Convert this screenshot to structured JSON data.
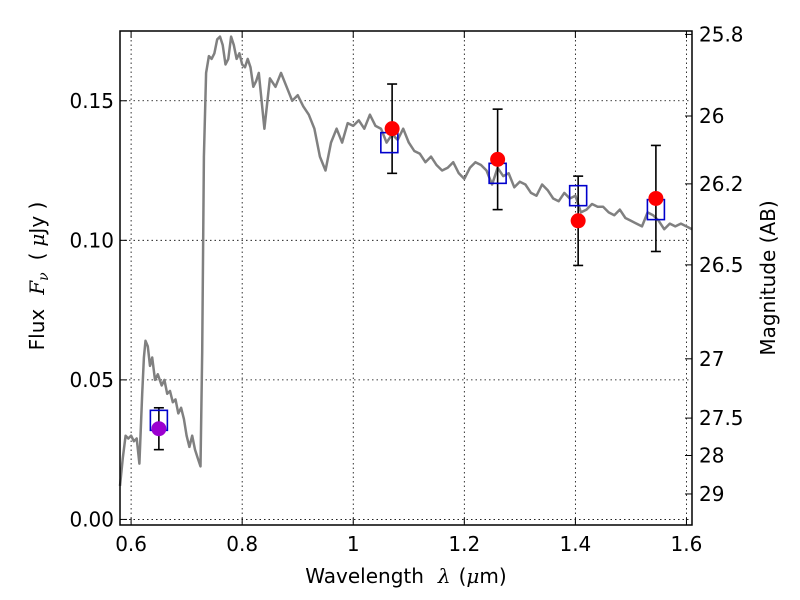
{
  "chart_data": {
    "type": "scatter",
    "xlabel": {
      "text": "Wavelength",
      "symbol": "λ",
      "unit_open": "(",
      "unit_mu": "μ",
      "unit_rest": "m)"
    },
    "ylabel": {
      "text": "Flux",
      "symbol": "F",
      "sub": "ν",
      "unit_open": "(",
      "unit_mu": "μ",
      "unit_rest": "Jy )"
    },
    "y2label": "Magnitude (AB)",
    "xlim": [
      0.58,
      1.61
    ],
    "ylim": [
      -0.002,
      0.175
    ],
    "grid": true,
    "x_ticks": [
      {
        "value": 0.6,
        "label": "0.6"
      },
      {
        "value": 0.8,
        "label": "0.8"
      },
      {
        "value": 1.0,
        "label": "1"
      },
      {
        "value": 1.2,
        "label": "1.2"
      },
      {
        "value": 1.4,
        "label": "1.4"
      },
      {
        "value": 1.6,
        "label": "1.6"
      }
    ],
    "y_ticks": [
      {
        "value": 0.0,
        "label": "0.00"
      },
      {
        "value": 0.05,
        "label": "0.05"
      },
      {
        "value": 0.1,
        "label": "0.10"
      },
      {
        "value": 0.15,
        "label": "0.15"
      }
    ],
    "y2_ticks": [
      {
        "value": 25.8,
        "label": "25.8"
      },
      {
        "value": 26.0,
        "label": "26"
      },
      {
        "value": 26.2,
        "label": "26.2"
      },
      {
        "value": 26.5,
        "label": "26.5"
      },
      {
        "value": 27.0,
        "label": "27"
      },
      {
        "value": 27.5,
        "label": "27.5"
      },
      {
        "value": 28.0,
        "label": "28"
      },
      {
        "value": 29.0,
        "label": "29"
      }
    ],
    "sed_model": {
      "color": "#808080",
      "x": [
        0.58,
        0.585,
        0.59,
        0.595,
        0.6,
        0.605,
        0.61,
        0.615,
        0.62,
        0.623,
        0.626,
        0.63,
        0.634,
        0.638,
        0.643,
        0.648,
        0.655,
        0.66,
        0.665,
        0.67,
        0.675,
        0.68,
        0.685,
        0.69,
        0.695,
        0.7,
        0.705,
        0.71,
        0.715,
        0.72,
        0.725,
        0.728,
        0.731,
        0.735,
        0.74,
        0.745,
        0.75,
        0.755,
        0.76,
        0.765,
        0.77,
        0.775,
        0.78,
        0.785,
        0.79,
        0.795,
        0.8,
        0.805,
        0.81,
        0.815,
        0.82,
        0.825,
        0.83,
        0.835,
        0.84,
        0.85,
        0.86,
        0.87,
        0.88,
        0.89,
        0.9,
        0.91,
        0.92,
        0.93,
        0.94,
        0.95,
        0.96,
        0.97,
        0.98,
        0.99,
        1.0,
        1.01,
        1.02,
        1.03,
        1.04,
        1.05,
        1.06,
        1.07,
        1.08,
        1.09,
        1.1,
        1.11,
        1.12,
        1.13,
        1.14,
        1.15,
        1.16,
        1.17,
        1.18,
        1.19,
        1.2,
        1.21,
        1.22,
        1.23,
        1.24,
        1.25,
        1.26,
        1.27,
        1.28,
        1.29,
        1.3,
        1.31,
        1.32,
        1.33,
        1.34,
        1.35,
        1.36,
        1.37,
        1.38,
        1.39,
        1.4,
        1.41,
        1.42,
        1.43,
        1.44,
        1.45,
        1.46,
        1.47,
        1.48,
        1.49,
        1.5,
        1.51,
        1.52,
        1.53,
        1.54,
        1.55,
        1.56,
        1.57,
        1.58,
        1.59,
        1.6,
        1.61
      ],
      "y": [
        0.012,
        0.022,
        0.03,
        0.029,
        0.03,
        0.028,
        0.029,
        0.02,
        0.045,
        0.058,
        0.064,
        0.062,
        0.055,
        0.058,
        0.05,
        0.052,
        0.048,
        0.05,
        0.045,
        0.046,
        0.042,
        0.043,
        0.038,
        0.04,
        0.036,
        0.03,
        0.026,
        0.03,
        0.025,
        0.022,
        0.019,
        0.06,
        0.13,
        0.16,
        0.166,
        0.165,
        0.167,
        0.172,
        0.173,
        0.17,
        0.163,
        0.165,
        0.173,
        0.17,
        0.165,
        0.167,
        0.163,
        0.162,
        0.165,
        0.162,
        0.155,
        0.157,
        0.16,
        0.15,
        0.14,
        0.158,
        0.155,
        0.16,
        0.155,
        0.15,
        0.152,
        0.148,
        0.145,
        0.14,
        0.13,
        0.125,
        0.135,
        0.14,
        0.135,
        0.142,
        0.141,
        0.143,
        0.14,
        0.145,
        0.141,
        0.14,
        0.135,
        0.138,
        0.136,
        0.14,
        0.135,
        0.132,
        0.131,
        0.128,
        0.13,
        0.127,
        0.125,
        0.126,
        0.128,
        0.124,
        0.122,
        0.126,
        0.128,
        0.127,
        0.125,
        0.12,
        0.126,
        0.123,
        0.124,
        0.119,
        0.121,
        0.12,
        0.117,
        0.116,
        0.12,
        0.118,
        0.115,
        0.114,
        0.117,
        0.115,
        0.116,
        0.11,
        0.111,
        0.113,
        0.112,
        0.112,
        0.11,
        0.109,
        0.111,
        0.108,
        0.107,
        0.106,
        0.105,
        0.11,
        0.109,
        0.107,
        0.104,
        0.106,
        0.105,
        0.106,
        0.105,
        0.104
      ]
    },
    "observed": {
      "color": "#ff0000",
      "points": [
        {
          "x": 1.07,
          "y": 0.14,
          "err_low": 0.016,
          "err_high": 0.016
        },
        {
          "x": 1.26,
          "y": 0.129,
          "err_low": 0.018,
          "err_high": 0.018
        },
        {
          "x": 1.405,
          "y": 0.107,
          "err_low": 0.016,
          "err_high": 0.016
        },
        {
          "x": 1.545,
          "y": 0.115,
          "err_low": 0.019,
          "err_high": 0.019
        }
      ]
    },
    "optical_point": {
      "color": "#9b00d0",
      "x": 0.65,
      "y": 0.0325,
      "err_low": 0.0075,
      "err_high": 0.0075
    },
    "model_boxes": {
      "color": "#0000cc",
      "points": [
        {
          "x": 0.65,
          "y": 0.0355
        },
        {
          "x": 1.065,
          "y": 0.135
        },
        {
          "x": 1.26,
          "y": 0.124
        },
        {
          "x": 1.405,
          "y": 0.116
        },
        {
          "x": 1.545,
          "y": 0.111
        }
      ]
    }
  }
}
